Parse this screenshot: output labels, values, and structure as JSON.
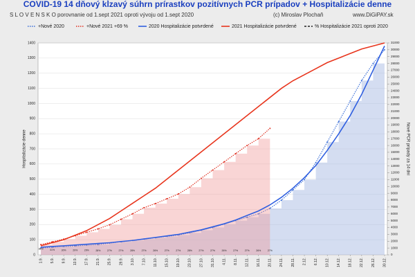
{
  "chart_data": {
    "type": "combo",
    "title": "COVID-19 14 dňový kĺzavý súhrn prírastkov pozitívnych PCR  prípadov + Hospitalizácie denne",
    "subtitle": "S L O V E N S K O    porovnanie od 1.sept 2021 oproti vývoju od 1.sept 2020",
    "credit": "(c) Miroslav Plochaň",
    "website": "www.DiGiPAY.sk",
    "y_label": "Hospitalizácie denne",
    "y2_label": "Nové PCR prípady za 14 dní",
    "categories": [
      "1.9.",
      "5.9.",
      "9.9.",
      "13.9.",
      "17.9.",
      "21.9.",
      "25.9.",
      "29.9.",
      "3.10.",
      "7.10.",
      "11.10.",
      "15.10.",
      "19.10.",
      "23.10.",
      "27.10.",
      "31.10.",
      "4.11.",
      "8.11.",
      "12.11.",
      "16.11.",
      "20.11.",
      "24.11.",
      "28.11.",
      "2.12.",
      "6.12.",
      "10.12.",
      "14.12.",
      "18.12.",
      "22.12.",
      "26.12.",
      "30.12."
    ],
    "ylim": [
      0,
      1400
    ],
    "yticks": [
      0,
      100,
      200,
      300,
      400,
      500,
      600,
      700,
      800,
      900,
      1000,
      1100,
      1200,
      1300,
      1400
    ],
    "y2lim": [
      0,
      31000
    ],
    "y2ticks": [
      0,
      1000,
      2000,
      3000,
      4000,
      5000,
      6000,
      7000,
      8000,
      9000,
      10000,
      11000,
      12000,
      13000,
      14000,
      15000,
      16000,
      17000,
      18000,
      19000,
      20000,
      21000,
      22000,
      23000,
      24000,
      25000,
      26000,
      27000,
      28000,
      29000,
      30000,
      31000
    ],
    "series": [
      {
        "name": "+Nové 2020",
        "color": "#3a6fd8",
        "style": "dotted-area",
        "axis": "y2",
        "values": [
          1000,
          1100,
          1200,
          1300,
          1400,
          1500,
          1700,
          1900,
          2100,
          2300,
          2500,
          2700,
          2900,
          3200,
          3600,
          4000,
          4500,
          5000,
          5500,
          6000,
          6800,
          8000,
          9500,
          11000,
          13500,
          16500,
          19500,
          22500,
          25500,
          28000,
          30000
        ]
      },
      {
        "name": "+Nové 2021 +69 %",
        "color": "#e03020",
        "style": "dotted-area",
        "axis": "y2",
        "values": [
          1500,
          1900,
          2300,
          2800,
          3300,
          3800,
          4400,
          5200,
          6000,
          6900,
          7500,
          8200,
          8900,
          9900,
          11200,
          12400,
          13600,
          14800,
          16000,
          17000,
          18500,
          null,
          null,
          null,
          null,
          null,
          null,
          null,
          null,
          null,
          null
        ]
      },
      {
        "name": "2020 Hospitalizácie potvrdené",
        "color": "#2f5fe0",
        "style": "line",
        "values": [
          50,
          55,
          60,
          65,
          70,
          75,
          80,
          88,
          95,
          105,
          115,
          125,
          135,
          150,
          165,
          185,
          205,
          230,
          260,
          290,
          330,
          380,
          440,
          510,
          590,
          690,
          800,
          920,
          1060,
          1220,
          1380
        ]
      },
      {
        "name": "2021 Hospitalizácie potvrdené",
        "color": "#e8341c",
        "style": "line",
        "values": [
          60,
          80,
          100,
          130,
          160,
          200,
          240,
          290,
          340,
          390,
          440,
          500,
          560,
          620,
          680,
          740,
          800,
          860,
          920,
          980,
          1040,
          1100,
          1150,
          1190,
          1230,
          1270,
          1300,
          1330,
          1360,
          1380,
          1400
        ]
      },
      {
        "name": "% Hospitalizácie 2021 oproti 2020",
        "color": "#222222",
        "style": "labels",
        "values": [
          38,
          31,
          30,
          29,
          29,
          28,
          27,
          27,
          28,
          27,
          26,
          27,
          27,
          28,
          27,
          27,
          26,
          27,
          27,
          26,
          27,
          null,
          null,
          null,
          null,
          null,
          null,
          null,
          null,
          null,
          null
        ],
        "value_labels": [
          "38%",
          "31%",
          "30%",
          "29%",
          "29%",
          "28%",
          "27%",
          "27%",
          "28%",
          "27%",
          "26%",
          "27%",
          "27%",
          "28%",
          "27%",
          "27%",
          "26%",
          "27%",
          "27%",
          "26%",
          "27%",
          null,
          null,
          null,
          null,
          null,
          null,
          null,
          null,
          null,
          null
        ]
      }
    ]
  }
}
